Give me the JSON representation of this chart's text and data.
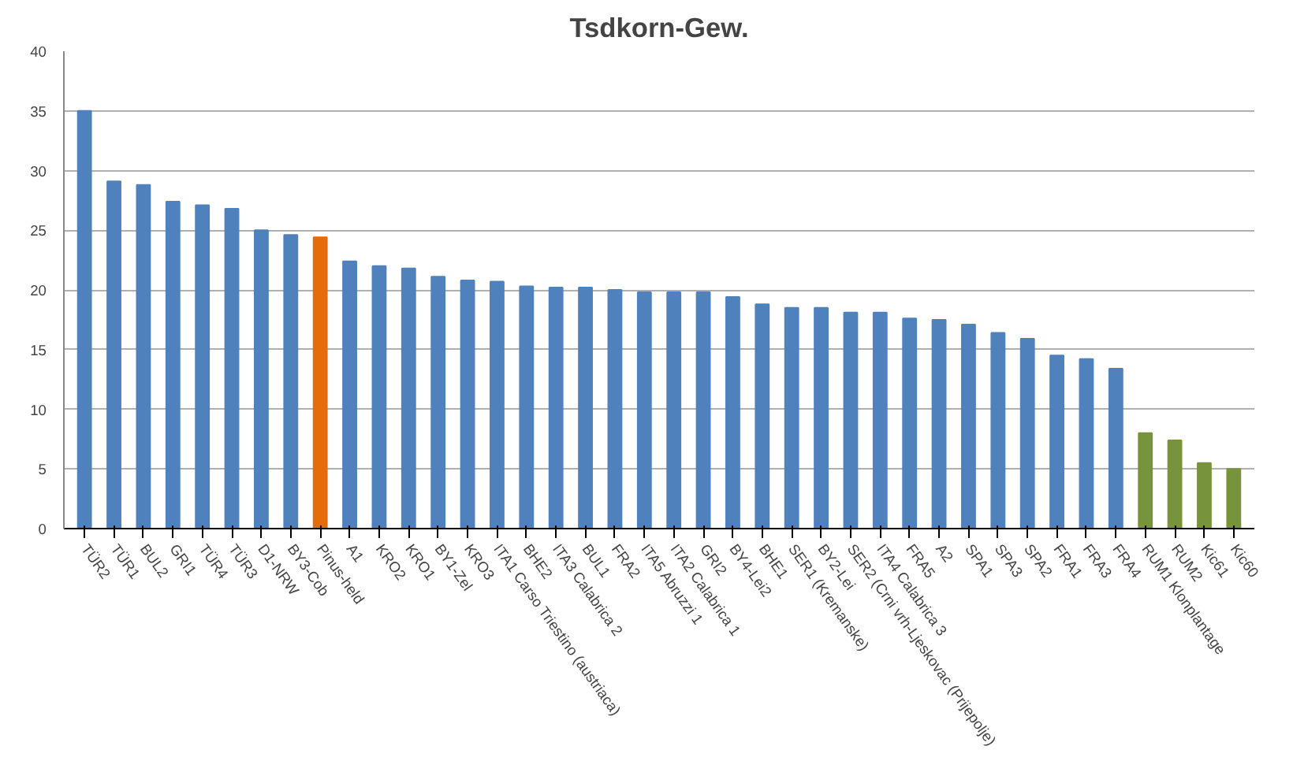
{
  "chart_data": {
    "type": "bar",
    "title": "Tsdkorn-Gew.",
    "categories": [
      "TÜR2",
      "TÜR1",
      "BUL2",
      "GRI1",
      "TÜR4",
      "TÜR3",
      "D1-NRW",
      "BY3-Cob",
      "Pinus-held",
      "A1",
      "KRO2",
      "KRO1",
      "BY1-Zel",
      "KRO3",
      "ITA1 Carso Triestino (austriaca)",
      "BHE2",
      "ITA3 Calabrica 2",
      "BUL1",
      "FRA2",
      "ITA5 Abruzzi 1",
      "ITA2 Calabrica 1",
      "GRI2",
      "BY4-Lei2",
      "BHE1",
      "SER1 (Kremanske)",
      "BY2-Lei",
      "SER2 (Crni vrh-Ljeskovac (Prijepolje)",
      "ITA4 Calabrica 3",
      "FRA5",
      "A2",
      "SPA1",
      "SPA3",
      "SPA2",
      "FRA1",
      "FRA3",
      "FRA4",
      "RUM1 Klonplantage",
      "RUM2",
      "Kic61",
      "Kic60"
    ],
    "values": [
      35.0,
      29.1,
      28.8,
      27.4,
      27.1,
      26.8,
      25.0,
      24.6,
      24.4,
      22.4,
      22.0,
      21.8,
      21.1,
      20.8,
      20.7,
      20.3,
      20.2,
      20.2,
      20.0,
      19.8,
      19.8,
      19.8,
      19.4,
      18.8,
      18.5,
      18.5,
      18.1,
      18.1,
      17.6,
      17.5,
      17.1,
      16.4,
      15.9,
      14.5,
      14.2,
      13.4,
      8.0,
      7.4,
      5.5,
      5.0
    ],
    "colors": [
      "#4f81bd",
      "#4f81bd",
      "#4f81bd",
      "#4f81bd",
      "#4f81bd",
      "#4f81bd",
      "#4f81bd",
      "#4f81bd",
      "#e46c0a",
      "#4f81bd",
      "#4f81bd",
      "#4f81bd",
      "#4f81bd",
      "#4f81bd",
      "#4f81bd",
      "#4f81bd",
      "#4f81bd",
      "#4f81bd",
      "#4f81bd",
      "#4f81bd",
      "#4f81bd",
      "#4f81bd",
      "#4f81bd",
      "#4f81bd",
      "#4f81bd",
      "#4f81bd",
      "#4f81bd",
      "#4f81bd",
      "#4f81bd",
      "#4f81bd",
      "#4f81bd",
      "#4f81bd",
      "#4f81bd",
      "#4f81bd",
      "#4f81bd",
      "#4f81bd",
      "#77933c",
      "#77933c",
      "#77933c",
      "#77933c"
    ],
    "ylim": [
      0,
      40
    ],
    "yticks": [
      0,
      5,
      10,
      15,
      20,
      25,
      30,
      35,
      40
    ],
    "grid": "y"
  }
}
